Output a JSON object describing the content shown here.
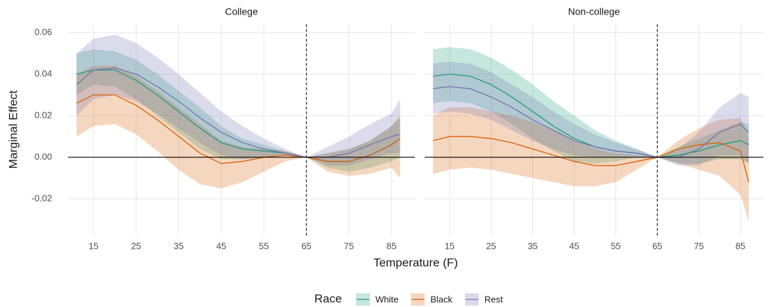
{
  "chart_data": [
    {
      "type": "line",
      "title": "College",
      "x": [
        11,
        15,
        20,
        25,
        30,
        35,
        40,
        45,
        50,
        55,
        60,
        65,
        70,
        75,
        80,
        85,
        87
      ],
      "xlim": [
        9,
        90.5
      ],
      "xticks": [
        15,
        25,
        35,
        45,
        55,
        65,
        75,
        85
      ],
      "ylim": [
        -0.0377,
        0.064
      ],
      "yticks": [
        -0.02,
        {
          "value": 0,
          "label": "0.00"
        },
        0.02,
        0.04,
        0.06
      ],
      "grid": true,
      "vline": 65,
      "hline": 0,
      "series": [
        {
          "name": "White",
          "color": "#1b9e77",
          "values": [
            0.04,
            0.042,
            0.042,
            0.037,
            0.03,
            0.022,
            0.014,
            0.007,
            0.004,
            0.003,
            0.002,
            0,
            -0.002,
            -0.002,
            0.001,
            0.006,
            0.009
          ],
          "lower": [
            0.03,
            0.035,
            0.034,
            0.028,
            0.02,
            0.012,
            0.004,
            -0.001,
            -0.001,
            0,
            0.001,
            0,
            -0.005,
            -0.007,
            -0.005,
            -0.002,
            0
          ],
          "upper": [
            0.05,
            0.052,
            0.051,
            0.047,
            0.04,
            0.032,
            0.024,
            0.015,
            0.009,
            0.006,
            0.003,
            0,
            0.002,
            0.004,
            0.008,
            0.015,
            0.019
          ]
        },
        {
          "name": "Black",
          "color": "#d95f02",
          "values": [
            0.026,
            0.03,
            0.03,
            0.025,
            0.018,
            0.01,
            0.002,
            -0.003,
            -0.002,
            0,
            0.001,
            0,
            -0.002,
            -0.002,
            0.001,
            0.006,
            0.009
          ],
          "lower": [
            0.01,
            0.015,
            0.016,
            0.011,
            0.003,
            -0.006,
            -0.013,
            -0.015,
            -0.012,
            -0.007,
            -0.002,
            0,
            -0.007,
            -0.009,
            -0.008,
            -0.005,
            -0.01
          ],
          "upper": [
            0.04,
            0.044,
            0.044,
            0.039,
            0.032,
            0.024,
            0.016,
            0.008,
            0.005,
            0.004,
            0.003,
            0,
            0.002,
            0.004,
            0.008,
            0.015,
            0.02
          ]
        },
        {
          "name": "Rest",
          "color": "#7570b3",
          "values": [
            0.035,
            0.042,
            0.043,
            0.04,
            0.034,
            0.027,
            0.019,
            0.012,
            0.007,
            0.004,
            0.002,
            0,
            0,
            0.002,
            0.006,
            0.01,
            0.011
          ],
          "lower": [
            0.02,
            0.028,
            0.03,
            0.027,
            0.021,
            0.014,
            0.007,
            0.001,
            -0.001,
            0,
            0.001,
            0,
            -0.004,
            -0.004,
            -0.001,
            0.002,
            0.002
          ],
          "upper": [
            0.05,
            0.057,
            0.059,
            0.055,
            0.048,
            0.04,
            0.031,
            0.022,
            0.015,
            0.009,
            0.004,
            0,
            0.005,
            0.01,
            0.016,
            0.021,
            0.028
          ]
        }
      ]
    },
    {
      "type": "line",
      "title": "Non-college",
      "x": [
        11,
        15,
        20,
        25,
        30,
        35,
        40,
        45,
        50,
        55,
        60,
        65,
        70,
        75,
        80,
        85,
        87
      ],
      "xlim": [
        9,
        90.5
      ],
      "xticks": [
        15,
        25,
        35,
        45,
        55,
        65,
        75,
        85
      ],
      "ylim": [
        -0.0377,
        0.064
      ],
      "yticks": [
        -0.02,
        0,
        0.02,
        0.04,
        0.06
      ],
      "grid": true,
      "vline": 65,
      "hline": 0,
      "series": [
        {
          "color": "#1b9e77",
          "values": [
            0.039,
            0.04,
            0.039,
            0.035,
            0.029,
            0.022,
            0.015,
            0.009,
            0.005,
            0.003,
            0.002,
            0,
            0.001,
            0.003,
            0.006,
            0.008,
            0.006
          ],
          "lower": [
            0.026,
            0.027,
            0.026,
            0.022,
            0.016,
            0.009,
            0.003,
            -0.002,
            -0.003,
            -0.002,
            0,
            0,
            -0.003,
            -0.003,
            -0.001,
            -0.001,
            -0.003
          ],
          "upper": [
            0.052,
            0.053,
            0.052,
            0.048,
            0.042,
            0.035,
            0.027,
            0.02,
            0.013,
            0.008,
            0.004,
            0,
            0.005,
            0.009,
            0.013,
            0.017,
            0.016
          ]
        },
        {
          "color": "#d95f02",
          "values": [
            0.008,
            0.01,
            0.01,
            0.009,
            0.007,
            0.004,
            0.001,
            -0.002,
            -0.004,
            -0.004,
            -0.002,
            0,
            0.004,
            0.006,
            0.007,
            0.003,
            -0.012
          ],
          "lower": [
            -0.008,
            -0.006,
            -0.005,
            -0.006,
            -0.008,
            -0.01,
            -0.012,
            -0.014,
            -0.014,
            -0.012,
            -0.006,
            0,
            -0.003,
            -0.006,
            -0.009,
            -0.018,
            -0.031
          ],
          "upper": [
            0.02,
            0.024,
            0.024,
            0.022,
            0.02,
            0.017,
            0.013,
            0.008,
            0.004,
            0.002,
            0.001,
            0,
            0.008,
            0.014,
            0.018,
            0.019,
            0.01
          ]
        },
        {
          "color": "#7570b3",
          "values": [
            0.033,
            0.034,
            0.033,
            0.029,
            0.024,
            0.018,
            0.013,
            0.008,
            0.005,
            0.003,
            0.002,
            0,
            0,
            0.004,
            0.012,
            0.016,
            0.012
          ],
          "lower": [
            0.021,
            0.022,
            0.021,
            0.018,
            0.013,
            0.008,
            0.004,
            0.001,
            0,
            0,
            0,
            0,
            -0.004,
            -0.004,
            0.001,
            0.001,
            -0.003
          ],
          "upper": [
            0.045,
            0.046,
            0.045,
            0.041,
            0.035,
            0.029,
            0.022,
            0.016,
            0.011,
            0.007,
            0.004,
            0,
            0.004,
            0.012,
            0.024,
            0.031,
            0.029
          ]
        }
      ]
    }
  ],
  "xlabel": "Temperature (F)",
  "ylabel": "Marginal Effect",
  "legend": {
    "title": "Race",
    "position": "bottom"
  }
}
